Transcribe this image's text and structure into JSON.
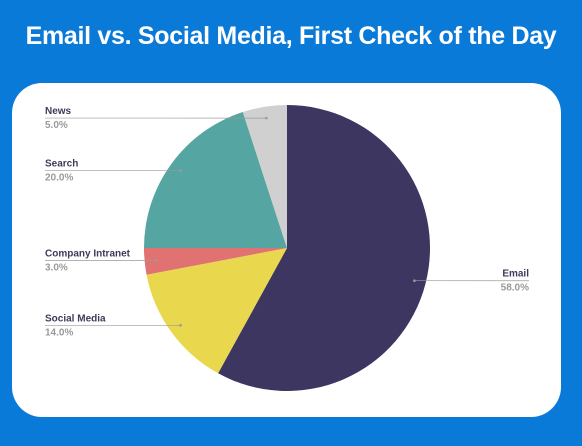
{
  "title": "Email vs. Social Media, First Check of the Day",
  "chart_data": {
    "type": "pie",
    "title": "Email vs. Social Media, First Check of the Day",
    "start_angle_deg": 0,
    "direction": "clockwise",
    "slices": [
      {
        "name": "Email",
        "value": 58.0,
        "label": "58.0%",
        "color": "#3c3660",
        "label_side": "right"
      },
      {
        "name": "Social Media",
        "value": 14.0,
        "label": "14.0%",
        "color": "#e9d84e",
        "label_side": "left"
      },
      {
        "name": "Company Intranet",
        "value": 3.0,
        "label": "3.0%",
        "color": "#e07272",
        "label_side": "left"
      },
      {
        "name": "Search",
        "value": 20.0,
        "label": "20.0%",
        "color": "#55a5a2",
        "label_side": "left"
      },
      {
        "name": "News",
        "value": 5.0,
        "label": "5.0%",
        "color": "#d0d0d0",
        "label_side": "left"
      }
    ]
  }
}
